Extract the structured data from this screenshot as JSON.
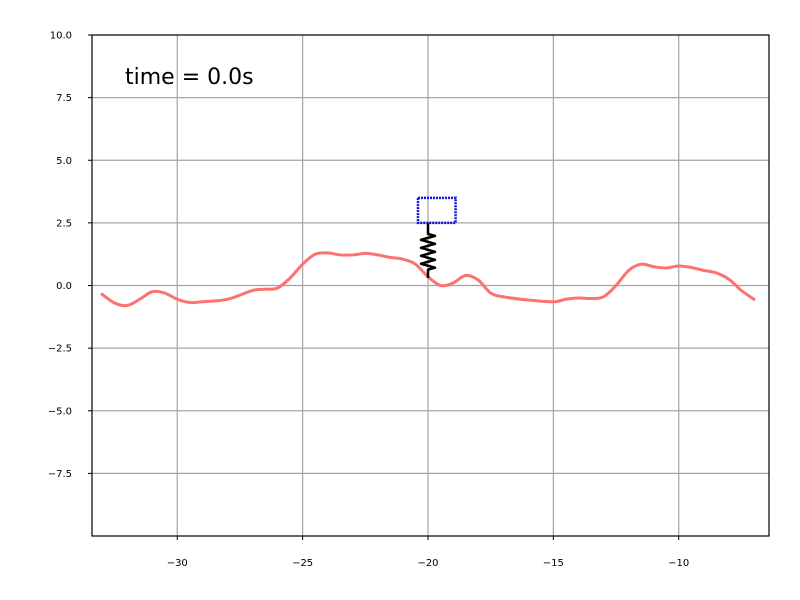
{
  "chart_data": {
    "type": "line",
    "title": "",
    "xlabel": "",
    "ylabel": "",
    "xlim": [
      -33.4,
      -6.4
    ],
    "ylim": [
      -10.0,
      10.0
    ],
    "grid": true,
    "x_ticks": [
      -30,
      -25,
      -20,
      -15,
      -10
    ],
    "x_tick_labels": [
      "−30",
      "−25",
      "−20",
      "−15",
      "−10"
    ],
    "y_ticks": [
      10.0,
      7.5,
      5.0,
      2.5,
      0.0,
      -2.5,
      -5.0,
      -7.5
    ],
    "y_tick_labels": [
      "10.0",
      "7.5",
      "5.0",
      "2.5",
      "0.0",
      "−2.5",
      "−5.0",
      "−7.5"
    ],
    "annotation": "time = 0.0s",
    "colors": {
      "road": "#ff7070",
      "body": "#1010e0",
      "spring": "#000000",
      "grid": "#a8a0ac"
    },
    "series": [
      {
        "values": [
          [
            -33.0,
            -0.35
          ],
          [
            -32.5,
            -0.7
          ],
          [
            -32.0,
            -0.8
          ],
          [
            -31.5,
            -0.55
          ],
          [
            -31.0,
            -0.25
          ],
          [
            -30.5,
            -0.3
          ],
          [
            -30.0,
            -0.55
          ],
          [
            -29.5,
            -0.68
          ],
          [
            -29.0,
            -0.65
          ],
          [
            -28.0,
            -0.55
          ],
          [
            -27.0,
            -0.2
          ],
          [
            -26.5,
            -0.15
          ],
          [
            -26.0,
            -0.1
          ],
          [
            -25.5,
            0.3
          ],
          [
            -25.0,
            0.85
          ],
          [
            -24.5,
            1.25
          ],
          [
            -24.0,
            1.3
          ],
          [
            -23.5,
            1.22
          ],
          [
            -23.0,
            1.22
          ],
          [
            -22.5,
            1.28
          ],
          [
            -22.0,
            1.22
          ],
          [
            -21.5,
            1.12
          ],
          [
            -21.0,
            1.05
          ],
          [
            -20.5,
            0.85
          ],
          [
            -20.0,
            0.35
          ],
          [
            -19.5,
            0.0
          ],
          [
            -19.0,
            0.1
          ],
          [
            -18.5,
            0.4
          ],
          [
            -18.0,
            0.22
          ],
          [
            -17.5,
            -0.3
          ],
          [
            -17.0,
            -0.45
          ],
          [
            -16.0,
            -0.58
          ],
          [
            -15.0,
            -0.65
          ],
          [
            -14.5,
            -0.55
          ],
          [
            -14.0,
            -0.5
          ],
          [
            -13.5,
            -0.52
          ],
          [
            -13.0,
            -0.45
          ],
          [
            -12.5,
            0.0
          ],
          [
            -12.0,
            0.6
          ],
          [
            -11.5,
            0.85
          ],
          [
            -11.0,
            0.75
          ],
          [
            -10.5,
            0.7
          ],
          [
            -10.0,
            0.78
          ],
          [
            -9.5,
            0.72
          ],
          [
            -9.0,
            0.6
          ],
          [
            -8.5,
            0.5
          ],
          [
            -8.0,
            0.25
          ],
          [
            -7.5,
            -0.2
          ],
          [
            -7.0,
            -0.55
          ]
        ]
      }
    ],
    "body": {
      "x": [
        -20.4,
        -18.9
      ],
      "y": [
        2.5,
        3.5
      ]
    },
    "spring": {
      "x": -20.0,
      "y": [
        0.3,
        2.5
      ]
    }
  }
}
